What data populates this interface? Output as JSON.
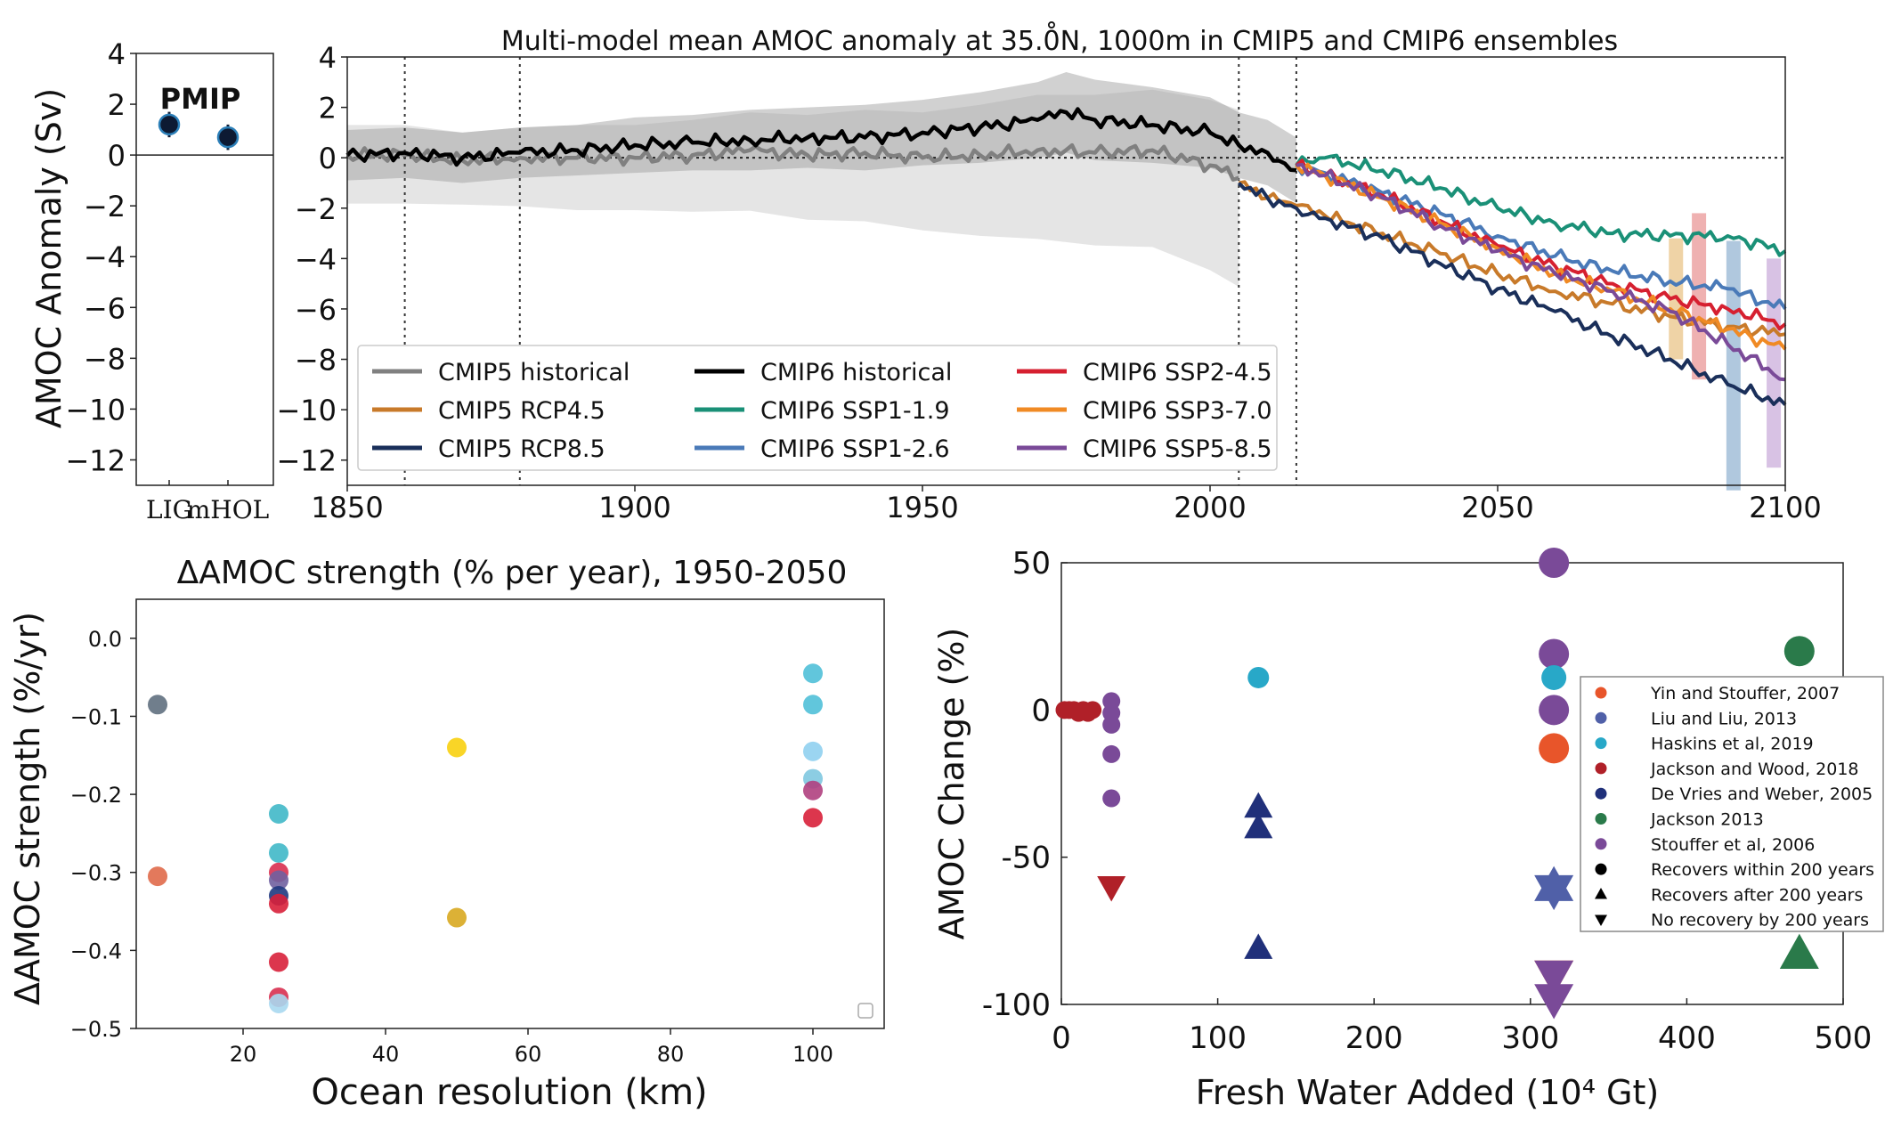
{
  "figure": {
    "panel_pmip": {
      "label": "PMIP",
      "ylabel": "AMOC Anomaly (Sv)"
    },
    "panel_timeseries": {
      "title": "Multi-model mean AMOC anomaly at 35.0̊N, 1000m in CMIP5 and CMIP6 ensembles"
    },
    "panel_scatter": {
      "title": "ΔAMOC strength (% per year), 1950-2050",
      "xlabel": "Ocean resolution (km)",
      "ylabel": "ΔAMOC strength (%/yr)"
    },
    "panel_freshwater": {
      "xlabel": "Fresh Water Added (10⁴ Gt)",
      "ylabel": "AMOC Change (%)"
    }
  },
  "chart_data": [
    {
      "type": "scatter",
      "id": "pmip",
      "categories": [
        "LIG",
        "mHOL"
      ],
      "values": [
        1.2,
        0.7
      ],
      "errors": [
        0.5,
        0.5
      ],
      "ylabel": "AMOC Anomaly (Sv)",
      "ylim": [
        -13,
        4
      ],
      "yticks": [
        4,
        2,
        0,
        -2,
        -4,
        -6,
        -8,
        -10,
        -12
      ],
      "annotation": "PMIP",
      "colors": {
        "marker": "#0d1a33",
        "edge": "#2c7fb8"
      }
    },
    {
      "type": "line",
      "id": "timeseries",
      "title": "Multi-model mean AMOC anomaly at 35.0̊N, 1000m in CMIP5 and CMIP6 ensembles",
      "xlim": [
        1850,
        2100
      ],
      "ylim": [
        -13,
        4
      ],
      "xticks": [
        1850,
        1900,
        1950,
        2000,
        2050,
        2100
      ],
      "yticks": [
        4,
        2,
        0,
        -2,
        -4,
        -6,
        -8,
        -10,
        -12
      ],
      "vlines": [
        1860,
        1880,
        2005,
        2015
      ],
      "hline": 0,
      "legend_position": "lower-left",
      "series": [
        {
          "name": "CMIP5 historical",
          "color": "#808080",
          "x": [
            1850,
            1860,
            1870,
            1880,
            1890,
            1900,
            1910,
            1920,
            1930,
            1940,
            1950,
            1960,
            1970,
            1980,
            1990,
            2000,
            2005
          ],
          "y": [
            0.1,
            0.1,
            -0.1,
            0,
            0,
            0,
            0.1,
            0.3,
            0.1,
            0.2,
            0,
            0.1,
            0.3,
            0.2,
            0.3,
            -0.3,
            -0.8
          ],
          "band": [
            1.2,
            1.2,
            1.1,
            1.2,
            1.3,
            1.3,
            1.4,
            1.5,
            1.6,
            1.7,
            1.8,
            2.0,
            2.2,
            2.3,
            2.4,
            2.6,
            2.7
          ]
        },
        {
          "name": "CMIP6 historical",
          "color": "#000000",
          "x": [
            1850,
            1860,
            1870,
            1880,
            1890,
            1900,
            1910,
            1920,
            1930,
            1940,
            1950,
            1960,
            1970,
            1975,
            1980,
            1990,
            2000,
            2005,
            2010,
            2015
          ],
          "y": [
            0.1,
            0.2,
            0,
            0.2,
            0.3,
            0.5,
            0.6,
            0.7,
            0.8,
            0.8,
            1.0,
            1.2,
            1.5,
            1.8,
            1.5,
            1.3,
            1.0,
            0.5,
            0.2,
            -0.5
          ],
          "band": [
            1.0,
            1.0,
            1.0,
            1.0,
            1.0,
            1.1,
            1.1,
            1.2,
            1.2,
            1.3,
            1.3,
            1.4,
            1.5,
            1.6,
            1.6,
            1.5,
            1.4,
            1.3,
            1.3,
            1.3
          ]
        },
        {
          "name": "CMIP5 RCP4.5",
          "color": "#c87a2a",
          "x": [
            2005,
            2010,
            2015,
            2020,
            2030,
            2040,
            2050,
            2060,
            2070,
            2080,
            2090,
            2100
          ],
          "y": [
            -1.0,
            -1.6,
            -1.9,
            -2.3,
            -3.0,
            -3.8,
            -4.6,
            -5.3,
            -5.8,
            -6.3,
            -6.7,
            -7.0
          ]
        },
        {
          "name": "CMIP5 RCP8.5",
          "color": "#1a2f5a",
          "x": [
            2005,
            2010,
            2015,
            2020,
            2030,
            2040,
            2050,
            2060,
            2070,
            2080,
            2090,
            2100
          ],
          "y": [
            -1.0,
            -1.6,
            -2.0,
            -2.4,
            -3.2,
            -4.2,
            -5.2,
            -6.1,
            -7.1,
            -8.0,
            -9.0,
            -9.8
          ]
        },
        {
          "name": "CMIP6 SSP1-1.9",
          "color": "#1a9077",
          "x": [
            2015,
            2020,
            2025,
            2030,
            2040,
            2050,
            2060,
            2070,
            2080,
            2090,
            2100
          ],
          "y": [
            -0.3,
            0,
            -0.3,
            -0.5,
            -1.2,
            -2.0,
            -2.6,
            -3.0,
            -3.1,
            -3.1,
            -3.7
          ]
        },
        {
          "name": "CMIP6 SSP1-2.6",
          "color": "#4a7ab8",
          "x": [
            2015,
            2020,
            2030,
            2040,
            2050,
            2060,
            2070,
            2080,
            2090,
            2100
          ],
          "y": [
            -0.3,
            -0.6,
            -1.4,
            -2.2,
            -3.1,
            -3.9,
            -4.5,
            -4.9,
            -5.2,
            -6.0
          ]
        },
        {
          "name": "CMIP6 SSP2-4.5",
          "color": "#d62030",
          "x": [
            2015,
            2020,
            2030,
            2040,
            2050,
            2060,
            2070,
            2080,
            2090,
            2100
          ],
          "y": [
            -0.3,
            -0.7,
            -1.5,
            -2.5,
            -3.5,
            -4.3,
            -5.0,
            -5.6,
            -6.0,
            -6.6
          ]
        },
        {
          "name": "CMIP6 SSP3-7.0",
          "color": "#f08a24",
          "x": [
            2015,
            2020,
            2030,
            2040,
            2050,
            2060,
            2070,
            2080,
            2090,
            2100
          ],
          "y": [
            -0.3,
            -0.7,
            -1.6,
            -2.6,
            -3.6,
            -4.6,
            -5.3,
            -6.0,
            -6.8,
            -7.6
          ]
        },
        {
          "name": "CMIP6 SSP5-8.5",
          "color": "#7a4a98",
          "x": [
            2015,
            2020,
            2030,
            2040,
            2050,
            2060,
            2070,
            2080,
            2090,
            2100
          ],
          "y": [
            -0.3,
            -0.7,
            -1.6,
            -2.7,
            -3.7,
            -4.6,
            -5.3,
            -6.1,
            -7.4,
            -8.8
          ]
        }
      ],
      "tail_bands": [
        {
          "x": 2081,
          "low": -8,
          "high": -3.2,
          "color": "#e8c080"
        },
        {
          "x": 2085,
          "low": -8.8,
          "high": -2.2,
          "color": "#e89090"
        },
        {
          "x": 2091,
          "low": -13.2,
          "high": -3.3,
          "color": "#8fb0d0"
        },
        {
          "x": 2098,
          "low": -12.3,
          "high": -4.0,
          "color": "#c8a8d8"
        }
      ]
    },
    {
      "type": "scatter",
      "id": "resolution",
      "title": "ΔAMOC strength (% per year), 1950-2050",
      "xlabel": "Ocean resolution (km)",
      "ylabel": "ΔAMOC strength (%/yr)",
      "xlim": [
        5,
        110
      ],
      "ylim": [
        -0.5,
        0.05
      ],
      "xticks": [
        20,
        40,
        60,
        80,
        100
      ],
      "yticks": [
        0.0,
        -0.1,
        -0.2,
        -0.3,
        -0.4,
        -0.5
      ],
      "ytick_labels": [
        "0.0",
        "−0.1",
        "−0.2",
        "−0.3",
        "−0.4",
        "−0.5"
      ],
      "points": [
        {
          "x": 8,
          "y": -0.085,
          "color": "#607080"
        },
        {
          "x": 8,
          "y": -0.305,
          "color": "#e06a4a"
        },
        {
          "x": 25,
          "y": -0.225,
          "color": "#40b8c8"
        },
        {
          "x": 25,
          "y": -0.275,
          "color": "#40b8c8"
        },
        {
          "x": 25,
          "y": -0.3,
          "color": "#d83050"
        },
        {
          "x": 25,
          "y": -0.31,
          "color": "#7060a0"
        },
        {
          "x": 25,
          "y": -0.33,
          "color": "#203880"
        },
        {
          "x": 25,
          "y": -0.34,
          "color": "#d8203a"
        },
        {
          "x": 25,
          "y": -0.415,
          "color": "#d8203a"
        },
        {
          "x": 25,
          "y": -0.46,
          "color": "#d83050"
        },
        {
          "x": 25,
          "y": -0.468,
          "color": "#a8d8f0"
        },
        {
          "x": 50,
          "y": -0.14,
          "color": "#f8d010"
        },
        {
          "x": 50,
          "y": -0.358,
          "color": "#d8a820"
        },
        {
          "x": 100,
          "y": -0.045,
          "color": "#50c0d8"
        },
        {
          "x": 100,
          "y": -0.085,
          "color": "#50c0d8"
        },
        {
          "x": 100,
          "y": -0.145,
          "color": "#90d0f0"
        },
        {
          "x": 100,
          "y": -0.18,
          "color": "#80c8e0"
        },
        {
          "x": 100,
          "y": -0.195,
          "color": "#b04080"
        },
        {
          "x": 100,
          "y": -0.23,
          "color": "#d8203a"
        }
      ]
    },
    {
      "type": "scatter",
      "id": "freshwater",
      "xlabel": "Fresh Water Added (10⁴ Gt)",
      "ylabel": "AMOC Change (%)",
      "xlim": [
        0,
        500
      ],
      "ylim": [
        -100,
        50
      ],
      "xticks": [
        0,
        100,
        200,
        300,
        400,
        500
      ],
      "yticks": [
        50,
        0,
        -50,
        -100
      ],
      "ytick_labels": [
        "50",
        "0",
        "-50",
        "-100"
      ],
      "legend_position": "right",
      "legend": [
        {
          "label": "Yin and Stouffer, 2007",
          "color": "#e8552a",
          "shape": "circle"
        },
        {
          "label": "Liu and Liu, 2013",
          "color": "#5060a8",
          "shape": "circle"
        },
        {
          "label": "Haskins et al, 2019",
          "color": "#28a8c8",
          "shape": "circle"
        },
        {
          "label": "Jackson and Wood, 2018",
          "color": "#b02028",
          "shape": "circle"
        },
        {
          "label": "De Vries and Weber, 2005",
          "color": "#20307a",
          "shape": "circle"
        },
        {
          "label": "Jackson 2013",
          "color": "#2a7a4a",
          "shape": "circle"
        },
        {
          "label": "Stouffer et al, 2006",
          "color": "#7a4a98",
          "shape": "circle"
        },
        {
          "label": "Recovers within 200 years",
          "color": "#000000",
          "shape": "circle"
        },
        {
          "label": "Recovers after 200 years",
          "color": "#000000",
          "shape": "triangle-up"
        },
        {
          "label": "No recovery by 200 years",
          "color": "#000000",
          "shape": "triangle-down"
        }
      ],
      "points": [
        {
          "x": 2,
          "y": 0,
          "color": "#b02028",
          "shape": "circle",
          "size": 10
        },
        {
          "x": 5,
          "y": 0,
          "color": "#b02028",
          "shape": "circle",
          "size": 10
        },
        {
          "x": 8,
          "y": 0,
          "color": "#b02028",
          "shape": "circle",
          "size": 10
        },
        {
          "x": 11,
          "y": -1,
          "color": "#b02028",
          "shape": "circle",
          "size": 10
        },
        {
          "x": 14,
          "y": 0,
          "color": "#b02028",
          "shape": "circle",
          "size": 10
        },
        {
          "x": 17,
          "y": -1,
          "color": "#b02028",
          "shape": "circle",
          "size": 10
        },
        {
          "x": 20,
          "y": 0,
          "color": "#b02028",
          "shape": "circle",
          "size": 10
        },
        {
          "x": 32,
          "y": 3,
          "color": "#7a4a98",
          "shape": "circle",
          "size": 10
        },
        {
          "x": 32,
          "y": -1,
          "color": "#7a4a98",
          "shape": "circle",
          "size": 10
        },
        {
          "x": 32,
          "y": -5,
          "color": "#7a4a98",
          "shape": "circle",
          "size": 10
        },
        {
          "x": 32,
          "y": -15,
          "color": "#7a4a98",
          "shape": "circle",
          "size": 10
        },
        {
          "x": 32,
          "y": -30,
          "color": "#7a4a98",
          "shape": "circle",
          "size": 10
        },
        {
          "x": 32,
          "y": -60,
          "color": "#b02028",
          "shape": "triangle-down",
          "size": 16
        },
        {
          "x": 126,
          "y": 11,
          "color": "#28a8c8",
          "shape": "circle",
          "size": 12
        },
        {
          "x": 126,
          "y": -33,
          "color": "#20307a",
          "shape": "triangle-up",
          "size": 16
        },
        {
          "x": 126,
          "y": -40,
          "color": "#20307a",
          "shape": "triangle-up",
          "size": 16
        },
        {
          "x": 126,
          "y": -81,
          "color": "#20307a",
          "shape": "triangle-up",
          "size": 16
        },
        {
          "x": 315,
          "y": 50,
          "color": "#7a4a98",
          "shape": "circle",
          "size": 17
        },
        {
          "x": 315,
          "y": 19,
          "color": "#7a4a98",
          "shape": "circle",
          "size": 17
        },
        {
          "x": 315,
          "y": 11,
          "color": "#28a8c8",
          "shape": "circle",
          "size": 14
        },
        {
          "x": 315,
          "y": 0,
          "color": "#7a4a98",
          "shape": "circle",
          "size": 17
        },
        {
          "x": 315,
          "y": -13,
          "color": "#e8552a",
          "shape": "circle",
          "size": 17
        },
        {
          "x": 315,
          "y": -60,
          "color": "#5060a8",
          "shape": "triangle-up",
          "size": 22
        },
        {
          "x": 315,
          "y": -61,
          "color": "#5060a8",
          "shape": "triangle-down",
          "size": 22
        },
        {
          "x": 315,
          "y": -90,
          "color": "#e8552a",
          "shape": "triangle-down",
          "size": 22
        },
        {
          "x": 315,
          "y": -90,
          "color": "#7a4a98",
          "shape": "triangle-down",
          "size": 22
        },
        {
          "x": 315,
          "y": -98,
          "color": "#7a4a98",
          "shape": "triangle-down",
          "size": 22
        },
        {
          "x": 472,
          "y": 20,
          "color": "#2a7a4a",
          "shape": "circle",
          "size": 17
        },
        {
          "x": 472,
          "y": -83,
          "color": "#2a7a4a",
          "shape": "triangle-up",
          "size": 22
        }
      ]
    }
  ]
}
